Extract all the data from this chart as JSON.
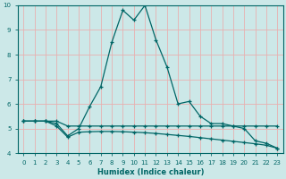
{
  "xlabel": "Humidex (Indice chaleur)",
  "bg_color": "#cce8e8",
  "line_color": "#006666",
  "grid_color": "#e8b0b0",
  "xlim": [
    -0.5,
    23.5
  ],
  "ylim": [
    4,
    10
  ],
  "xticks": [
    0,
    1,
    2,
    3,
    4,
    5,
    6,
    7,
    8,
    9,
    10,
    11,
    12,
    13,
    14,
    15,
    16,
    17,
    18,
    19,
    20,
    21,
    22,
    23
  ],
  "yticks": [
    4,
    5,
    6,
    7,
    8,
    9,
    10
  ],
  "series": [
    {
      "x": [
        0,
        1,
        2,
        3,
        4,
        5,
        6,
        7,
        8,
        9,
        10,
        11,
        12,
        13,
        14,
        15,
        16,
        17,
        18,
        19,
        20,
        21,
        22,
        23
      ],
      "y": [
        5.3,
        5.3,
        5.3,
        5.3,
        5.1,
        5.1,
        5.1,
        5.1,
        5.1,
        5.1,
        5.1,
        5.1,
        5.1,
        5.1,
        5.1,
        5.1,
        5.1,
        5.1,
        5.1,
        5.1,
        5.1,
        5.1,
        5.1,
        5.1
      ]
    },
    {
      "x": [
        0,
        1,
        2,
        3,
        4,
        5,
        6,
        7,
        8,
        9,
        10,
        11,
        12,
        13,
        14,
        15,
        16,
        17,
        18,
        19,
        20,
        21,
        22,
        23
      ],
      "y": [
        5.3,
        5.3,
        5.3,
        5.2,
        4.7,
        5.0,
        5.9,
        6.7,
        8.5,
        9.8,
        9.4,
        10.0,
        8.6,
        7.5,
        6.0,
        6.1,
        5.5,
        5.2,
        5.2,
        5.1,
        5.0,
        4.5,
        4.4,
        4.2
      ]
    },
    {
      "x": [
        0,
        1,
        2,
        3,
        4,
        5,
        6,
        7,
        8,
        9,
        10,
        11,
        12,
        13,
        14,
        15,
        16,
        17,
        18,
        19,
        20,
        21,
        22,
        23
      ],
      "y": [
        5.3,
        5.3,
        5.3,
        5.1,
        4.65,
        4.85,
        4.87,
        4.88,
        4.88,
        4.87,
        4.85,
        4.83,
        4.8,
        4.76,
        4.72,
        4.68,
        4.63,
        4.58,
        4.53,
        4.48,
        4.43,
        4.38,
        4.32,
        4.2
      ]
    }
  ]
}
